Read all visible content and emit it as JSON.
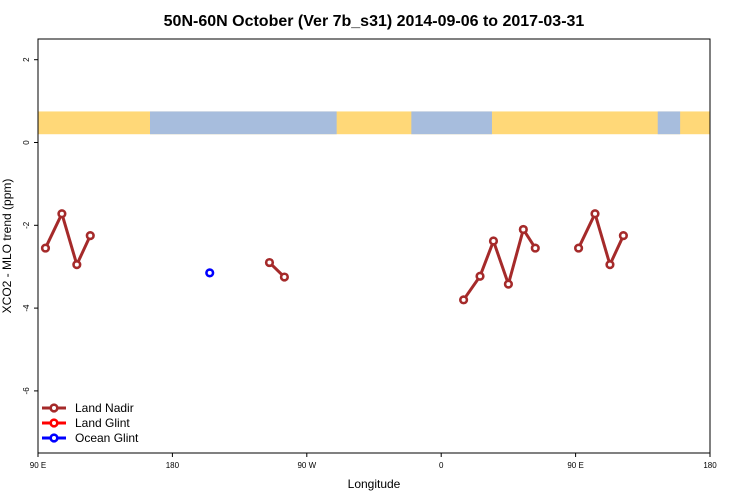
{
  "chart_data": {
    "type": "line",
    "title": "50N-60N October (Ver 7b_s31)   2014-09-06 to 2017-03-31",
    "xlabel": "Longitude",
    "ylabel": "XCO2 - MLO trend (ppm)",
    "xlim": [
      -90,
      360
    ],
    "ylim": [
      -7.5,
      2.5
    ],
    "grid": false,
    "legend_position": "bottom-left",
    "x_ticks": [
      {
        "value": -90,
        "label": "90 E"
      },
      {
        "value": 0,
        "label": "180"
      },
      {
        "value": 90,
        "label": "90 W"
      },
      {
        "value": 180,
        "label": "0"
      },
      {
        "value": 270,
        "label": "90 E"
      },
      {
        "value": 360,
        "label": "180"
      }
    ],
    "y_ticks": [
      {
        "value": 2,
        "label": "2"
      },
      {
        "value": 0,
        "label": "0"
      },
      {
        "value": -2,
        "label": "-2"
      },
      {
        "value": -4,
        "label": "-4"
      },
      {
        "value": -6,
        "label": "-6"
      }
    ],
    "map_strip": {
      "y_range": [
        0.2,
        0.75
      ],
      "land_color": "#FFD878",
      "ocean_color": "#A7BDDD",
      "ocean_spans": [
        [
          -15,
          110
        ],
        [
          160,
          214
        ],
        [
          325,
          340
        ]
      ]
    },
    "series": [
      {
        "name": "Land Nadir",
        "color": "#A52A2A",
        "segments": [
          [
            [
              -85,
              -2.55
            ],
            [
              -74,
              -1.72
            ],
            [
              -64,
              -2.95
            ],
            [
              -55,
              -2.25
            ]
          ],
          [
            [
              65,
              -2.9
            ],
            [
              75,
              -3.25
            ]
          ],
          [
            [
              195,
              -3.8
            ],
            [
              206,
              -3.23
            ],
            [
              215,
              -2.38
            ],
            [
              225,
              -3.42
            ],
            [
              235,
              -2.1
            ],
            [
              243,
              -2.55
            ]
          ],
          [
            [
              272,
              -2.55
            ],
            [
              283,
              -1.72
            ],
            [
              293,
              -2.95
            ],
            [
              302,
              -2.25
            ]
          ]
        ]
      },
      {
        "name": "Land Glint",
        "color": "#FF0000",
        "segments": []
      },
      {
        "name": "Ocean Glint",
        "color": "#0000FF",
        "segments": [
          [
            [
              25,
              -3.15
            ]
          ]
        ]
      }
    ]
  }
}
